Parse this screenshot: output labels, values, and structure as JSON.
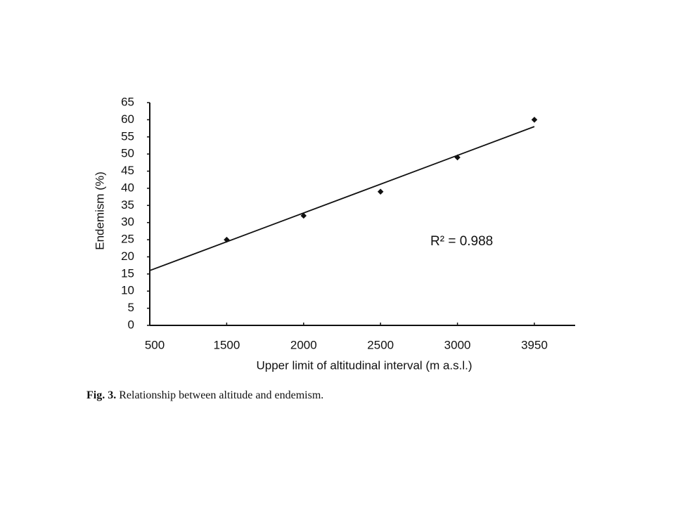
{
  "chart_data": {
    "type": "scatter",
    "x_label": "Upper limit of altitudinal interval (m a.s.l.)",
    "y_label": "Endemism (%)",
    "categories": [
      "500",
      "1500",
      "2000",
      "2500",
      "3000",
      "3950"
    ],
    "values": [
      null,
      25,
      32,
      39,
      49,
      60
    ],
    "color": "#111111",
    "trendline": {
      "start": 16,
      "end": 58
    },
    "annotation": "R² = 0.988",
    "ylim": [
      0,
      65
    ],
    "yticks": [
      0,
      5,
      10,
      15,
      20,
      25,
      30,
      35,
      40,
      45,
      50,
      55,
      60,
      65
    ],
    "caption_label": "Fig. 3.",
    "caption": "Relationship between altitude and endemism."
  }
}
